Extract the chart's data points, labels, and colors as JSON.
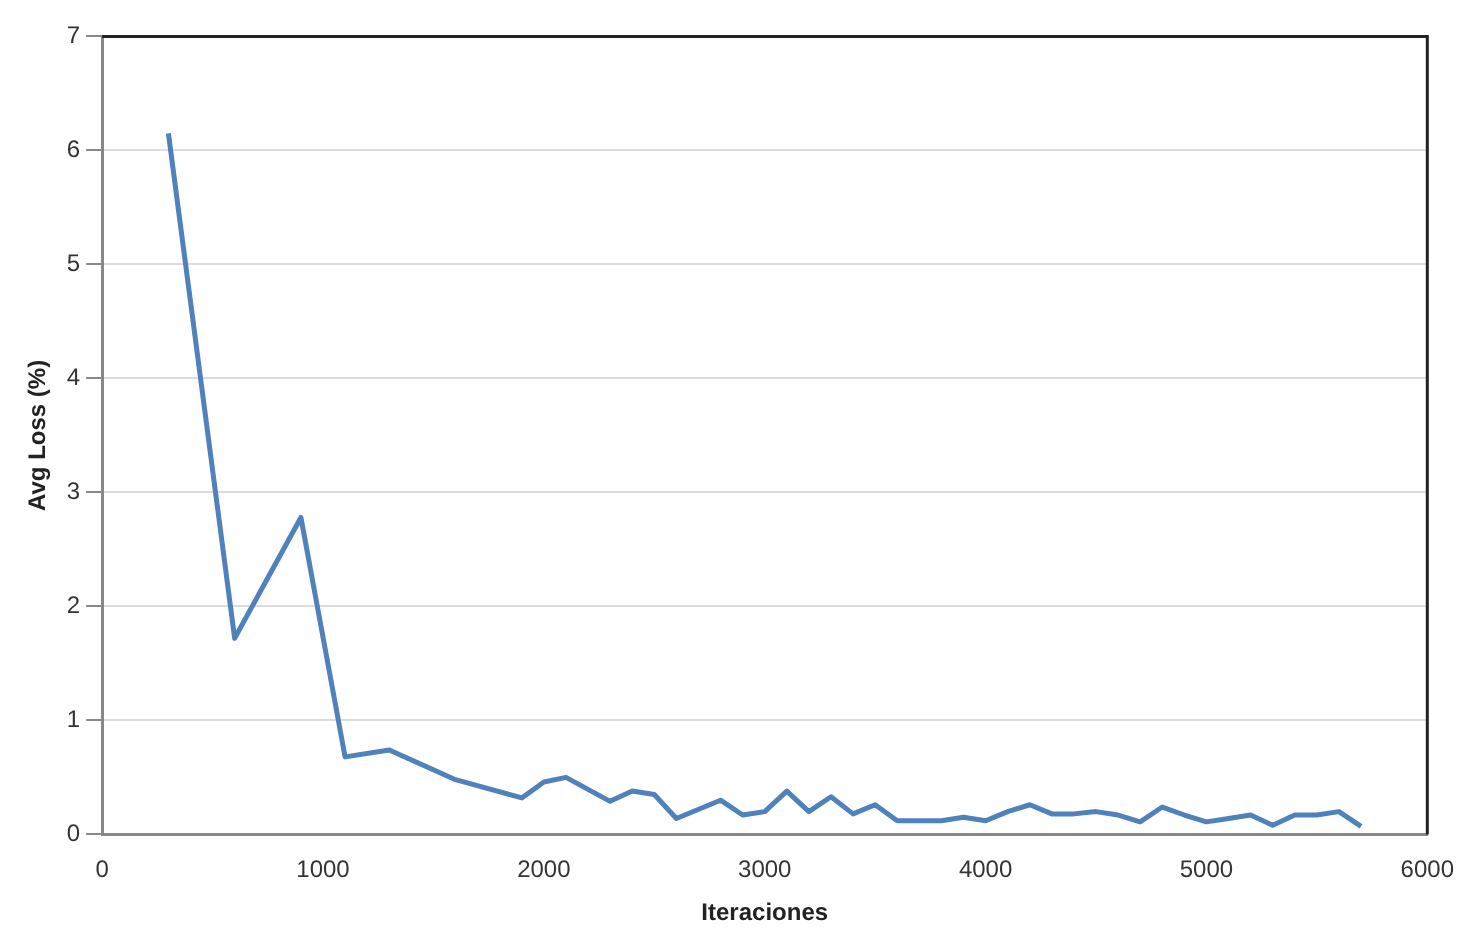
{
  "chart_data": {
    "type": "line",
    "xlabel": "Iteraciones",
    "ylabel": "Avg Loss (%)",
    "x": [
      300,
      600,
      900,
      1100,
      1300,
      1600,
      1900,
      2000,
      2100,
      2300,
      2400,
      2500,
      2600,
      2800,
      2900,
      3000,
      3100,
      3200,
      3300,
      3400,
      3500,
      3600,
      3800,
      3900,
      4000,
      4100,
      4200,
      4300,
      4400,
      4500,
      4600,
      4700,
      4800,
      4900,
      5000,
      5100,
      5200,
      5300,
      5400,
      5500,
      5600,
      5700
    ],
    "series": [
      {
        "color": "#4f81bd",
        "values": [
          6.15,
          1.72,
          2.78,
          0.68,
          0.74,
          0.48,
          0.32,
          0.46,
          0.5,
          0.29,
          0.38,
          0.35,
          0.14,
          0.3,
          0.17,
          0.2,
          0.38,
          0.2,
          0.33,
          0.18,
          0.26,
          0.12,
          0.12,
          0.15,
          0.12,
          0.2,
          0.26,
          0.18,
          0.18,
          0.2,
          0.17,
          0.11,
          0.24,
          0.17,
          0.11,
          0.14,
          0.17,
          0.08,
          0.17,
          0.17,
          0.2,
          0.07
        ]
      }
    ],
    "xlim": [
      0,
      6000
    ],
    "xticks": [
      0,
      1000,
      2000,
      3000,
      4000,
      5000,
      6000
    ],
    "ylim": [
      0,
      7
    ],
    "yticks": [
      0,
      1,
      2,
      3,
      4,
      5,
      6,
      7
    ],
    "grid": "y",
    "legend": false,
    "marker": "none",
    "line_style": "solid"
  }
}
